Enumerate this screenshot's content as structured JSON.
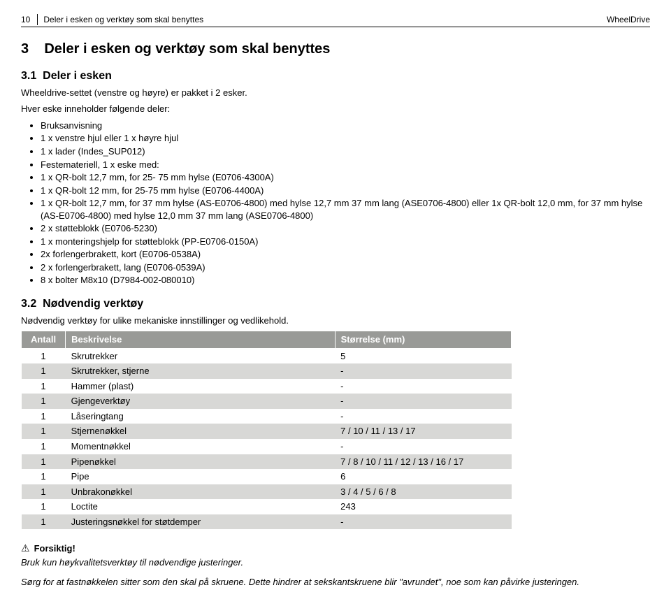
{
  "header": {
    "page_number": "10",
    "section_title": "Deler i esken og verktøy som skal benyttes",
    "brand": "WheelDrive"
  },
  "section3": {
    "number": "3",
    "title": "Deler i esken og verktøy som skal benyttes"
  },
  "section31": {
    "number": "3.1",
    "title": "Deler i esken",
    "intro1": "Wheeldrive-settet (venstre og høyre) er pakket i 2 esker.",
    "intro2": "Hver eske inneholder følgende deler:",
    "items": [
      "Bruksanvisning",
      "1 x venstre hjul eller 1 x høyre hjul",
      "1 x lader (Indes_SUP012)",
      "Festemateriell, 1 x eske med:",
      "1 x QR-bolt 12,7 mm, for 25- 75 mm hylse (E0706-4300A)",
      "1 x QR-bolt 12 mm, for 25-75 mm hylse (E0706-4400A)",
      "1 x QR-bolt 12,7 mm, for 37 mm hylse (AS-E0706-4800) med hylse 12,7 mm 37 mm lang (ASE0706-4800) eller 1x QR-bolt 12,0 mm, for 37 mm hylse (AS-E0706-4800) med hylse 12,0 mm 37 mm lang (ASE0706-4800)",
      "2 x støtteblokk (E0706-5230)",
      "1 x monteringshjelp for støtteblokk (PP-E0706-0150A)",
      "2x forlengerbrakett, kort (E0706-0538A)",
      "2 x forlengerbrakett, lang (E0706-0539A)",
      "8 x bolter M8x10 (D7984-002-080010)"
    ]
  },
  "section32": {
    "number": "3.2",
    "title": "Nødvendig verktøy",
    "intro": "Nødvendig verktøy for ulike mekaniske innstillinger og vedlikehold.",
    "columns": {
      "qty": "Antall",
      "desc": "Beskrivelse",
      "size": "Størrelse (mm)"
    },
    "rows": [
      {
        "qty": "1",
        "desc": "Skrutrekker",
        "size": "5"
      },
      {
        "qty": "1",
        "desc": "Skrutrekker, stjerne",
        "size": "-"
      },
      {
        "qty": "1",
        "desc": "Hammer (plast)",
        "size": "-"
      },
      {
        "qty": "1",
        "desc": "Gjengeverktøy",
        "size": "-"
      },
      {
        "qty": "1",
        "desc": "Låseringtang",
        "size": "-"
      },
      {
        "qty": "1",
        "desc": "Stjernenøkkel",
        "size": "7 / 10 / 11 / 13 / 17"
      },
      {
        "qty": "1",
        "desc": "Momentnøkkel",
        "size": "-"
      },
      {
        "qty": "1",
        "desc": "Pipenøkkel",
        "size": "7 / 8 / 10 / 11 / 12 / 13 / 16 / 17"
      },
      {
        "qty": "1",
        "desc": "Pipe",
        "size": "6"
      },
      {
        "qty": "1",
        "desc": "Unbrakonøkkel",
        "size": "3 / 4 / 5 / 6 / 8"
      },
      {
        "qty": "1",
        "desc": "Loctite",
        "size": "243"
      },
      {
        "qty": "1",
        "desc": "Justeringsnøkkel for støtdemper",
        "size": "-"
      }
    ]
  },
  "caution": {
    "label": "Forsiktig!",
    "text": "Bruk kun høykvalitetsverktøy til nødvendige justeringer."
  },
  "footer_para": "Sørg for at fastnøkkelen sitter som den skal på skruene. Dette hindrer at sekskantskruene blir \"avrundet\", noe som kan påvirke justeringen."
}
